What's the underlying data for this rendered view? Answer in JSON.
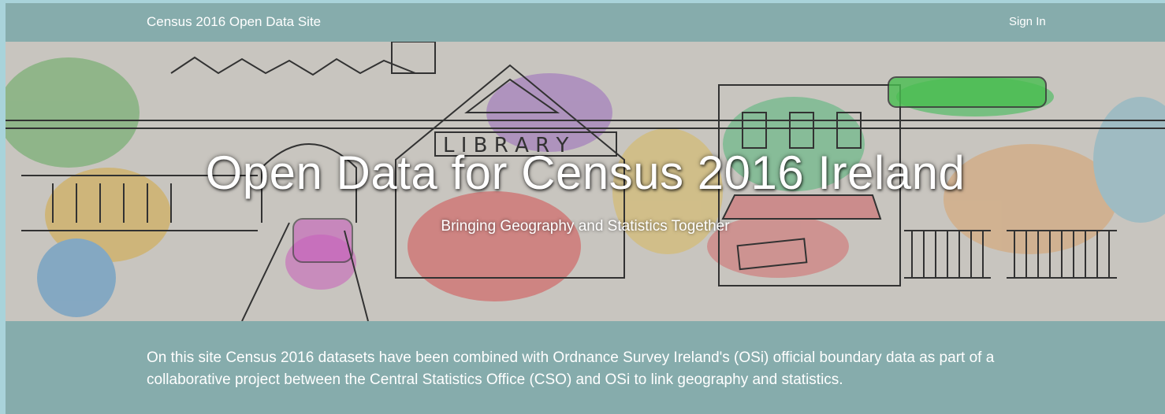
{
  "header": {
    "title": "Census 2016 Open Data Site",
    "sign_in": "Sign In"
  },
  "hero": {
    "title": "Open Data for Census 2016 Ireland",
    "subtitle": "Bringing Geography and Statistics Together"
  },
  "intro": {
    "text": "On this site Census 2016 datasets have been combined with Ordnance Survey Ireland's (OSi) official boundary data as part of a collaborative project between the Central Statistics Office (CSO) and OSi to link geography and statistics."
  }
}
